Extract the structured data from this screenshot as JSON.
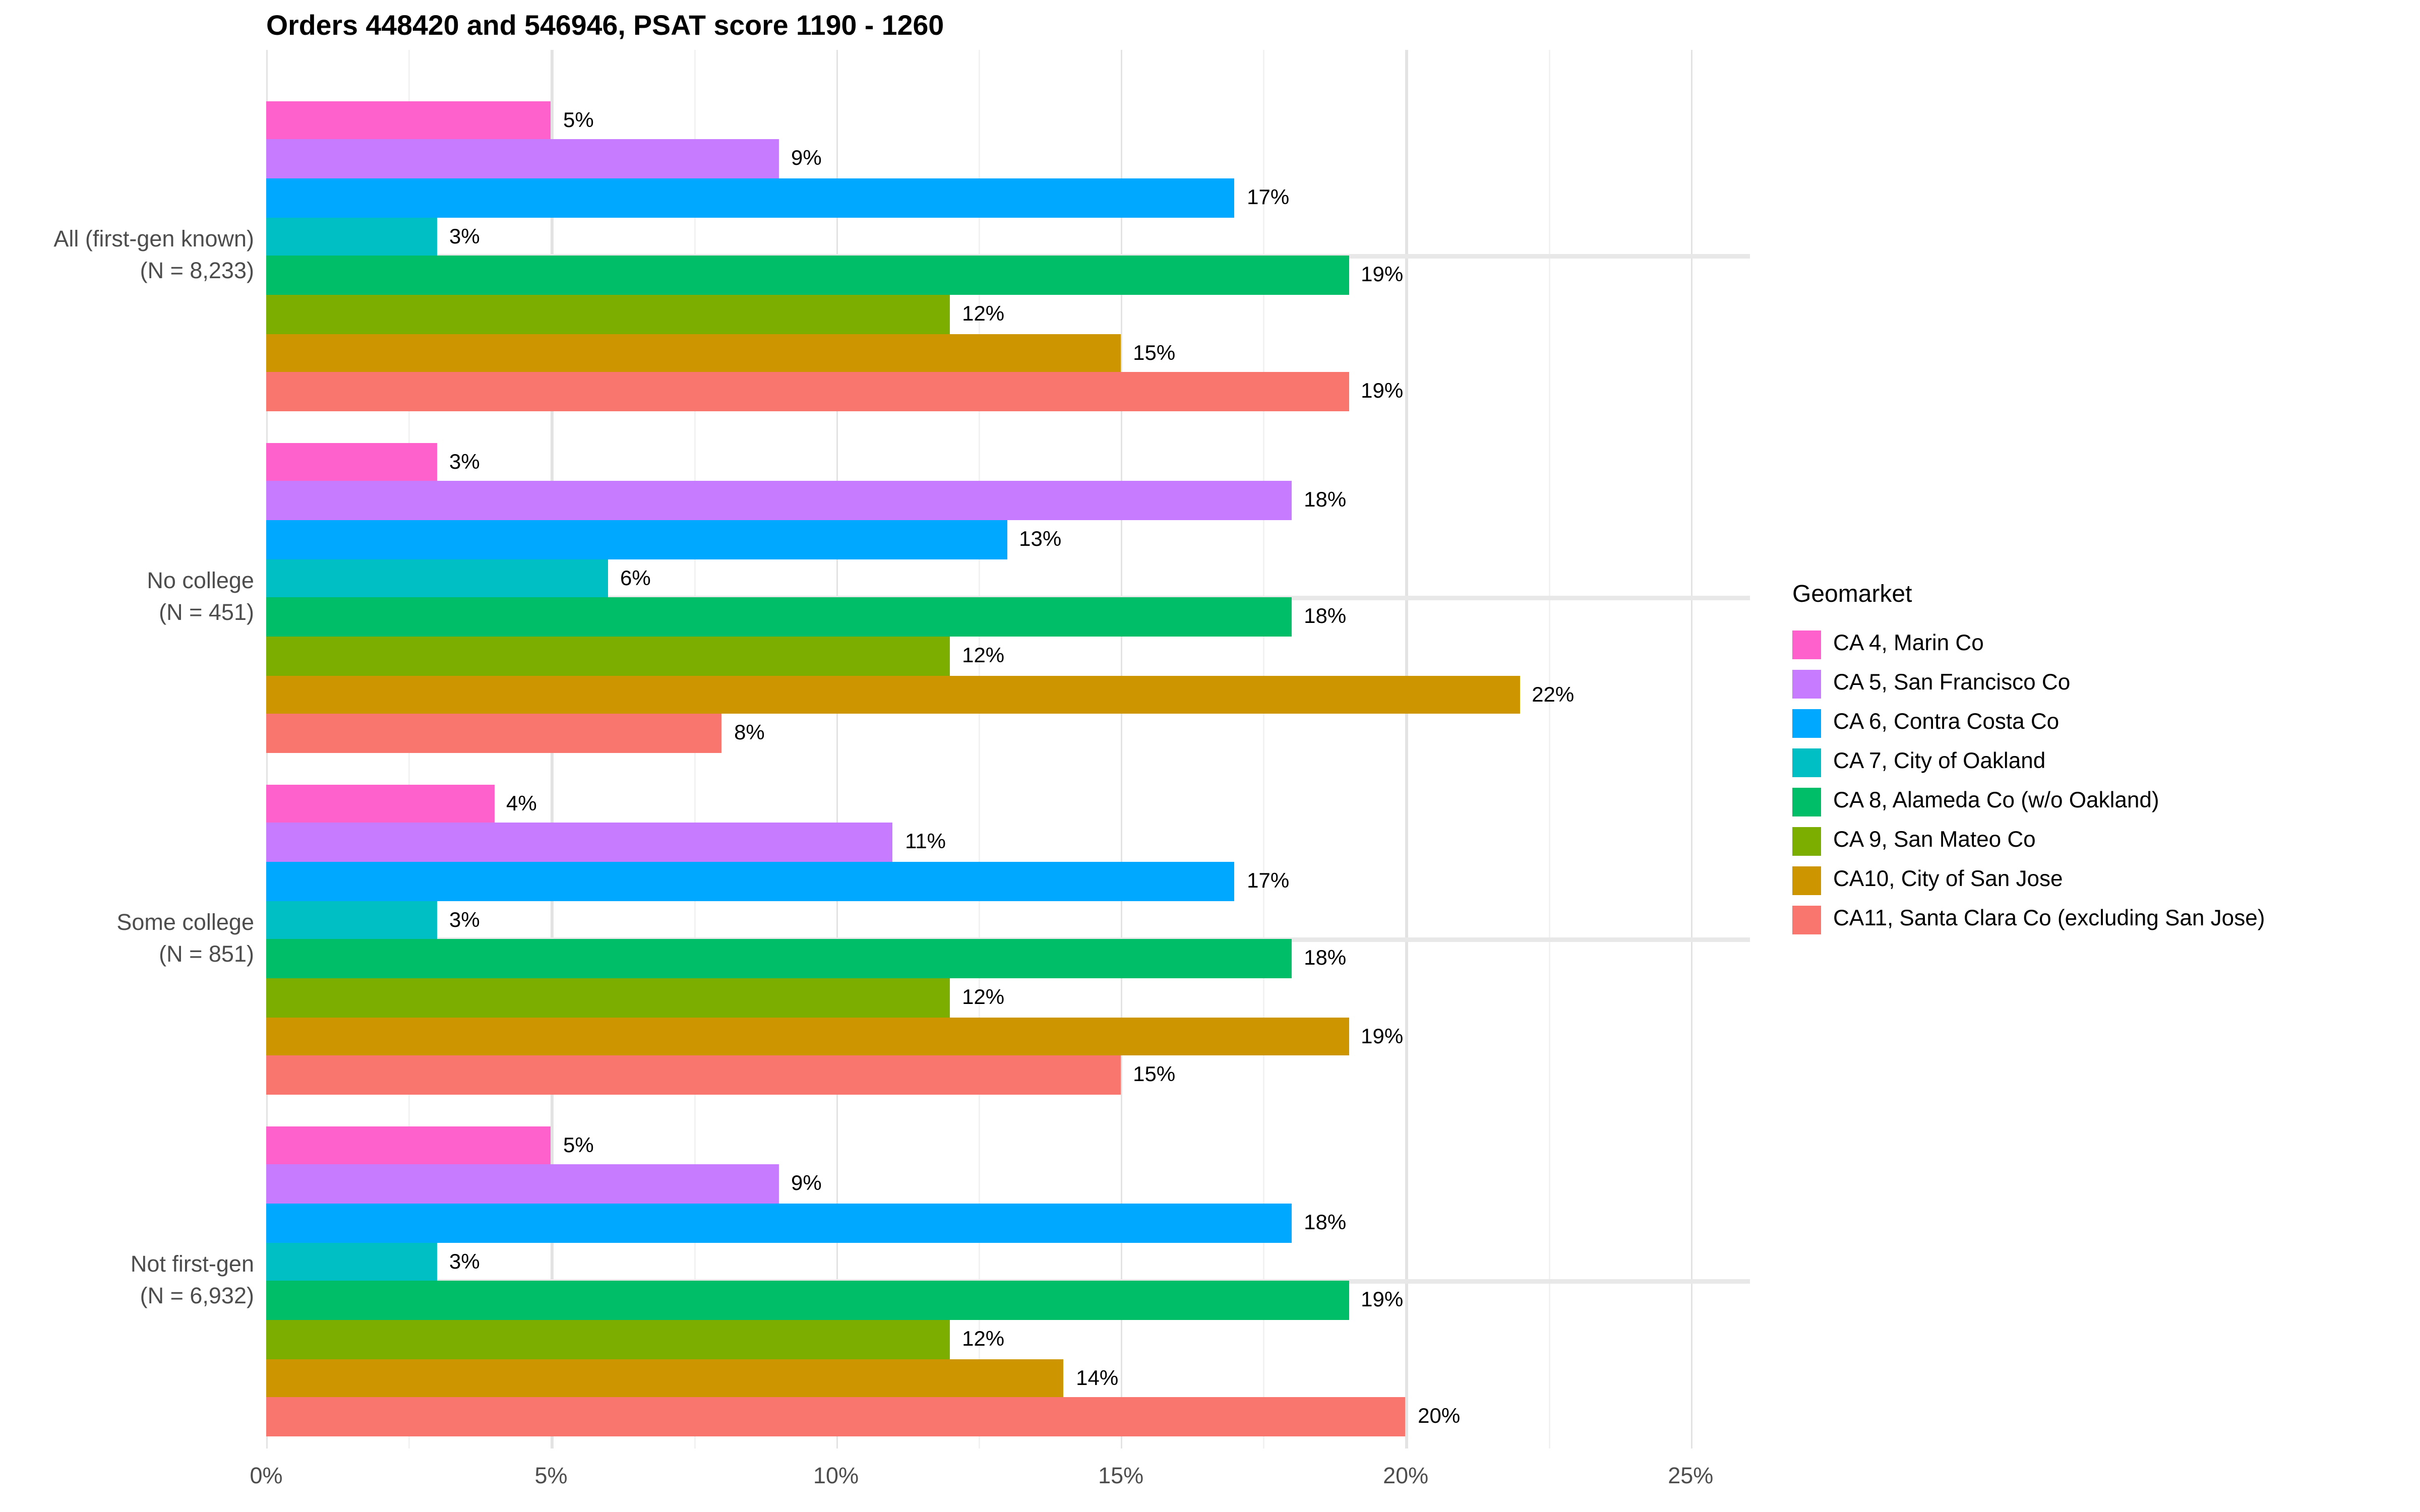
{
  "title": "Orders 448420 and 546946, PSAT score 1190 - 1260",
  "legend": {
    "title": "Geomarket"
  },
  "chart_data": {
    "type": "bar",
    "orientation": "horizontal",
    "title": "Orders 448420 and 546946, PSAT score 1190 - 1260",
    "legend_title": "Geomarket",
    "legend_position": "right",
    "grid": true,
    "xlabel": "",
    "ylabel": "",
    "x_axis": {
      "tick_labels": [
        "0%",
        "5%",
        "10%",
        "15%",
        "20%",
        "25%"
      ],
      "tick_values": [
        0,
        5,
        10,
        15,
        20,
        25
      ],
      "minor_tick_values": [
        2.5,
        7.5,
        12.5,
        17.5,
        22.5
      ],
      "axis_max_pct": 26.3
    },
    "series": [
      {
        "name": "CA 4, Marin Co",
        "color": "#FF61CC"
      },
      {
        "name": "CA 5, San Francisco Co",
        "color": "#C77CFF"
      },
      {
        "name": "CA 6, Contra Costa Co",
        "color": "#00A9FF"
      },
      {
        "name": "CA 7, City of Oakland",
        "color": "#00BFC4"
      },
      {
        "name": "CA 8, Alameda Co (w/o Oakland)",
        "color": "#00BE67"
      },
      {
        "name": "CA 9, San Mateo Co",
        "color": "#7CAE00"
      },
      {
        "name": "CA10, City of San Jose",
        "color": "#CD9600"
      },
      {
        "name": "CA11, Santa Clara Co (excluding San Jose)",
        "color": "#F8766D"
      }
    ],
    "groups": [
      {
        "label_lines": [
          "All (first-gen known)",
          "(N = 8,233)"
        ],
        "values": [
          5,
          9,
          17,
          3,
          19,
          12,
          15,
          19
        ],
        "value_labels": [
          "5%",
          "9%",
          "17%",
          "3%",
          "19%",
          "12%",
          "15%",
          "19%"
        ]
      },
      {
        "label_lines": [
          "No college",
          "(N = 451)"
        ],
        "values": [
          3,
          18,
          13,
          6,
          18,
          12,
          22,
          8
        ],
        "value_labels": [
          "3%",
          "18%",
          "13%",
          "6%",
          "18%",
          "12%",
          "22%",
          "8%"
        ]
      },
      {
        "label_lines": [
          "Some college",
          "(N = 851)"
        ],
        "values": [
          4,
          11,
          17,
          3,
          18,
          12,
          19,
          15
        ],
        "value_labels": [
          "4%",
          "11%",
          "17%",
          "3%",
          "18%",
          "12%",
          "19%",
          "15%"
        ]
      },
      {
        "label_lines": [
          "Not first-gen",
          "(N = 6,932)"
        ],
        "values": [
          5,
          9,
          18,
          3,
          19,
          12,
          14,
          20
        ],
        "value_labels": [
          "5%",
          "9%",
          "18%",
          "3%",
          "19%",
          "12%",
          "14%",
          "20%"
        ]
      }
    ]
  }
}
